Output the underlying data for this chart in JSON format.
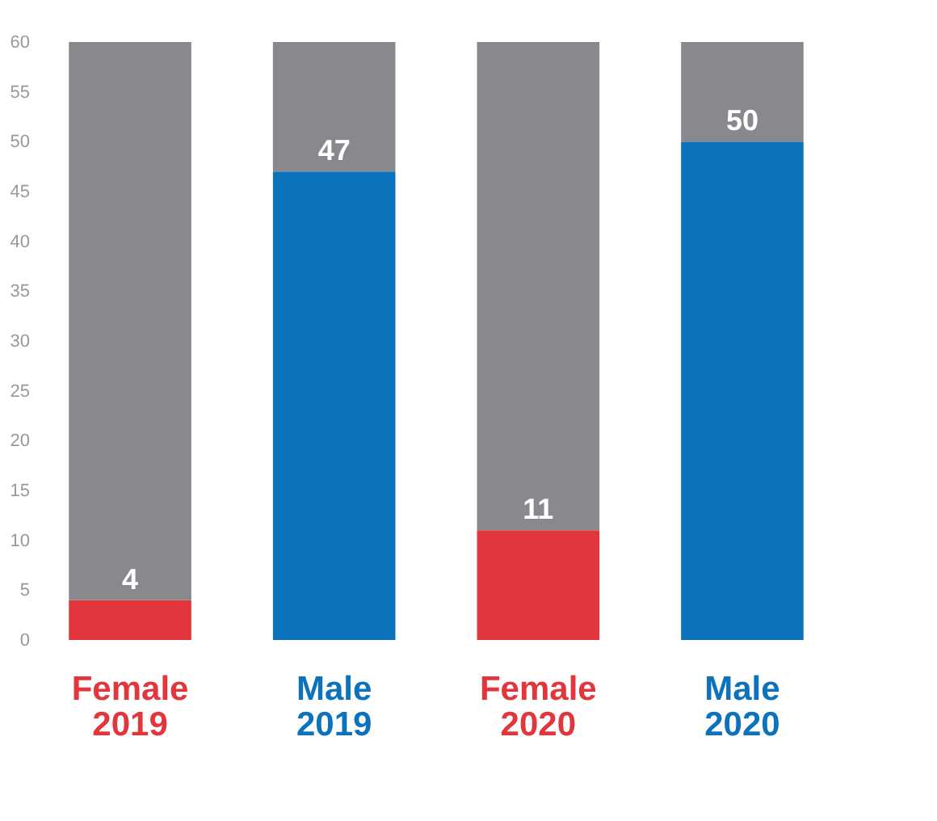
{
  "chart_data": {
    "type": "bar",
    "stacked": true,
    "categories": [
      "Female 2019",
      "Male 2019",
      "Female 2020",
      "Male 2020"
    ],
    "series": [
      {
        "colors": [
          "#e3353c",
          "#0b72bb",
          "#e3353c",
          "#0b72bb"
        ],
        "values": [
          4,
          47,
          11,
          50
        ],
        "value_labels": [
          "4",
          "47",
          "11",
          "50"
        ]
      },
      {
        "color": "#88898d",
        "values": [
          56,
          13,
          49,
          10
        ]
      }
    ],
    "ylim": [
      0,
      60
    ],
    "yticks": [
      0,
      5,
      10,
      15,
      20,
      25,
      30,
      35,
      40,
      45,
      50,
      55,
      60
    ],
    "grid": false
  }
}
